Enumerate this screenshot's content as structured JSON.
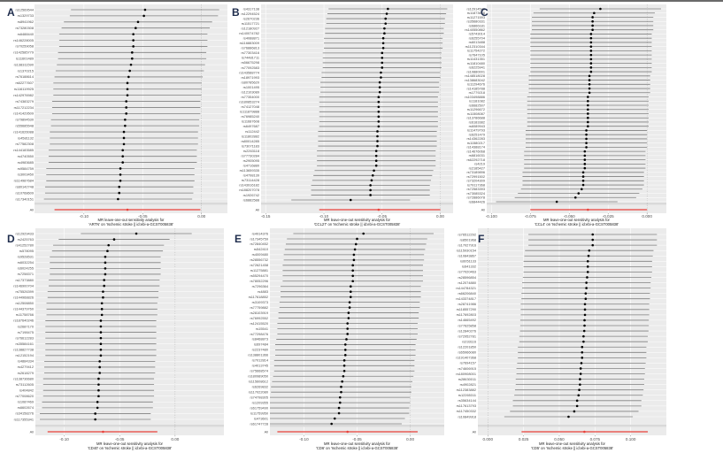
{
  "chart_data": [
    {
      "type": "forest",
      "panel": "A",
      "xlabel": [
        "MR leave-one-out sensitivity analysis for",
        "'ARTN' on 'Ischemic stroke || id:ebi-a-GCST005838'"
      ],
      "xlim": [
        -0.142,
        0.022
      ],
      "ticks": [
        -0.1,
        -0.05,
        0.0
      ],
      "tick_labels": [
        "-0.10",
        "-0.05",
        "0.00"
      ],
      "ci_halfwidth": 0.063,
      "snps": [
        "rs12569544",
        "rs1329733",
        "rs8941962",
        "rs73280308",
        "rs6488440",
        "rs146228005",
        "rs70259058",
        "rs142585779",
        "rs11601489",
        "rs138311590",
        "rs1370215",
        "rs76188614",
        "rs62277607",
        "rs116119925",
        "rs142976982",
        "rs74383279",
        "rs117212234",
        "rs141429509",
        "rs79894530",
        "rs55685548",
        "rs141626088",
        "rs4581132",
        "rs77582308",
        "rs144183585",
        "rs4740550",
        "rs4983685",
        "rs9584759",
        "rs3003450",
        "rs114987684",
        "rs80142748",
        "rs10768609",
        "rs17340151"
      ],
      "est": [
        -0.048,
        -0.049,
        -0.054,
        -0.056,
        -0.058,
        -0.058,
        -0.058,
        -0.059,
        -0.059,
        -0.06,
        -0.061,
        -0.062,
        -0.063,
        -0.063,
        -0.063,
        -0.064,
        -0.064,
        -0.064,
        -0.065,
        -0.065,
        -0.066,
        -0.066,
        -0.066,
        -0.067,
        -0.067,
        -0.067,
        -0.069,
        -0.069,
        -0.069,
        -0.07,
        -0.07,
        -0.071
      ],
      "all": {
        "label": "All",
        "est": -0.063,
        "lo": -0.125,
        "hi": -0.001
      }
    },
    {
      "type": "forest",
      "panel": "B",
      "xlabel": [
        "MR leave-one-out sensitivity analysis for",
        "'CCL27' on 'Ischemic stroke || id:ebi-a-GCST005838'"
      ],
      "xlim": [
        -0.154,
        0.011
      ],
      "ticks": [
        -0.15,
        -0.1,
        -0.05,
        0.0
      ],
      "tick_labels": [
        "-0.15",
        "-0.10",
        "-0.05",
        "0.00"
      ],
      "ci_halfwidth": 0.051,
      "snps": [
        "rs4317138",
        "rs12294524",
        "rs2670236",
        "rs11517721",
        "rs12180927",
        "rs140074782",
        "rs4088871",
        "rs116883009",
        "rs76886813",
        "rs77303416",
        "rs74481711",
        "rs56675298",
        "rs77092583",
        "rs143588774",
        "rs18971993",
        "rs80785620",
        "rs1001495",
        "rs12103089",
        "rs77354000",
        "rs180853274",
        "rs74127048",
        "rs111879888",
        "rs76985240",
        "rs11687608",
        "rs6497687",
        "rs112442",
        "rs11802882",
        "rs80014285",
        "rs73071183",
        "rs2263118",
        "rs77730284",
        "rs2905095",
        "rs4716880",
        "rs113659335",
        "rs4798139",
        "rs73114428",
        "rs143916182",
        "rs188207078",
        "rs1926742",
        "rs6882588"
      ],
      "est": [
        -0.045,
        -0.046,
        -0.047,
        -0.047,
        -0.048,
        -0.048,
        -0.049,
        -0.049,
        -0.049,
        -0.05,
        -0.05,
        -0.05,
        -0.05,
        -0.051,
        -0.051,
        -0.052,
        -0.052,
        -0.052,
        -0.053,
        -0.053,
        -0.053,
        -0.053,
        -0.053,
        -0.053,
        -0.053,
        -0.054,
        -0.054,
        -0.054,
        -0.054,
        -0.055,
        -0.055,
        -0.055,
        -0.055,
        -0.057,
        -0.058,
        -0.059,
        -0.06,
        -0.06,
        -0.06,
        -0.077
      ],
      "all": {
        "label": "All",
        "est": -0.053,
        "lo": -0.104,
        "hi": 0.0
      }
    },
    {
      "type": "forest",
      "panel": "C",
      "xlabel": [
        "MR leave-one-out sensitivity analysis for",
        "'CCL4' on 'Ischemic stroke || id:ebi-a-GCST005838'"
      ],
      "xlim": [
        -0.103,
        0.0124
      ],
      "ticks": [
        -0.1,
        -0.075,
        -0.05,
        -0.025,
        0.0
      ],
      "tick_labels": [
        "-0.100",
        "-0.075",
        "-0.050",
        "-0.025",
        "0.000"
      ],
      "ci_halfwidth": 0.039,
      "snps": [
        "rs12914546",
        "rs11873618",
        "rs11271593",
        "rs35680331",
        "rs6866181",
        "rs140550862",
        "rs5743014",
        "rs6255704",
        "rs6013488",
        "rs112310344",
        "rs11754272",
        "rs7647105",
        "rs11431351",
        "rs11810480",
        "rs6225941",
        "rs10880001",
        "rs148518028",
        "rs138683042",
        "rs11294676",
        "rs14185788",
        "rs1779218",
        "rs103498886",
        "rs1181082",
        "rs6682507",
        "rs11296672",
        "rs11508087",
        "rs13786688",
        "rs6183382",
        "rs6089943",
        "rs11479793",
        "rs6251479",
        "rs14362283",
        "rs11580217",
        "rs14388174",
        "rs14676068",
        "rs6816031",
        "rs62292718",
        "rs4219",
        "rs2185427",
        "rs73189896",
        "rs72991502",
        "rs73204309",
        "rs79117368",
        "rs72583393",
        "rs73085324",
        "rs72886078",
        "rs6844426"
      ],
      "est": [
        -0.03,
        -0.034,
        -0.035,
        -0.035,
        -0.035,
        -0.035,
        -0.036,
        -0.036,
        -0.036,
        -0.036,
        -0.036,
        -0.036,
        -0.036,
        -0.036,
        -0.036,
        -0.036,
        -0.037,
        -0.037,
        -0.037,
        -0.037,
        -0.037,
        -0.038,
        -0.038,
        -0.038,
        -0.038,
        -0.038,
        -0.038,
        -0.038,
        -0.038,
        -0.039,
        -0.039,
        -0.039,
        -0.039,
        -0.039,
        -0.04,
        -0.04,
        -0.04,
        -0.04,
        -0.04,
        -0.041,
        -0.041,
        -0.041,
        -0.041,
        -0.042,
        -0.044,
        -0.046,
        -0.058
      ],
      "all": {
        "label": "All",
        "est": -0.038,
        "lo": -0.075,
        "hi": 0.0
      }
    },
    {
      "type": "forest",
      "panel": "D",
      "xlabel": [
        "MR leave-one-out sensitivity analysis for",
        "'CD40' on 'Ischemic stroke || id:ebi-a-GCST005838'"
      ],
      "xlim": [
        -0.126,
        0.044
      ],
      "ticks": [
        -0.1,
        -0.05,
        0.0
      ],
      "tick_labels": [
        "-0.10",
        "-0.05",
        "0.00"
      ],
      "ci_halfwidth": 0.05,
      "snps": [
        "rs12929433",
        "rs2425763",
        "rs41252780",
        "rs578095",
        "rs9528531",
        "rs6032254",
        "rs6024255",
        "rs7258371",
        "rs17373880",
        "rs146900704",
        "rs75526399",
        "rs144968826",
        "rs12508850",
        "rs144379760",
        "rs11758766",
        "rs187640246",
        "rs2687170",
        "rs7198475",
        "rs76612283",
        "rs35584161",
        "rs138827738",
        "rs12152194",
        "rs4884334",
        "rs4279412",
        "rs2618279",
        "rs138736680",
        "rs73112605",
        "rs404842",
        "rs77008620",
        "rs1087469",
        "rs6602674",
        "rs34158276",
        "rs117355341"
      ],
      "est": [
        -0.035,
        -0.055,
        -0.06,
        -0.061,
        -0.063,
        -0.063,
        -0.063,
        -0.063,
        -0.064,
        -0.064,
        -0.065,
        -0.065,
        -0.066,
        -0.066,
        -0.066,
        -0.067,
        -0.067,
        -0.067,
        -0.067,
        -0.067,
        -0.067,
        -0.067,
        -0.068,
        -0.068,
        -0.068,
        -0.069,
        -0.069,
        -0.069,
        -0.069,
        -0.07,
        -0.07,
        -0.072,
        -0.072
      ],
      "all": {
        "label": "All",
        "est": -0.065,
        "lo": -0.115,
        "hi": -0.016
      }
    },
    {
      "type": "forest",
      "panel": "E",
      "xlabel": [
        "MR leave-one-out sensitivity analysis for",
        "'CD6' on 'Ischemic stroke || id:ebi-a-GCST005838'"
      ],
      "xlim": [
        -0.132,
        0.032
      ],
      "ticks": [
        -0.1,
        -0.05,
        0.0
      ],
      "tick_labels": [
        "-0.10",
        "-0.05",
        "0.00"
      ],
      "ci_halfwidth": 0.066,
      "snps": [
        "rs4914376",
        "rs17345759",
        "rs72840452",
        "rs542410",
        "rs4009480",
        "rs28556732",
        "rs72621458",
        "rs11275881",
        "rs55294470",
        "rs78052296",
        "rs7296364",
        "rs4883",
        "rs117618852",
        "rs3109373",
        "rs77759882",
        "rs28103919",
        "rs76992552",
        "rs12415520",
        "rs15541",
        "rs77298476",
        "rs8468873",
        "rs697484",
        "rs2237480",
        "rs138801366",
        "rs7012814",
        "rs4013745",
        "rs75668574",
        "rs180989050",
        "rs115608612",
        "rs6269832",
        "rs117022080",
        "rs74798305",
        "rs1209355",
        "rs61759490",
        "rs11759950",
        "rs473601",
        "rs61747728"
      ],
      "est": [
        -0.044,
        -0.05,
        -0.051,
        -0.052,
        -0.053,
        -0.053,
        -0.054,
        -0.054,
        -0.054,
        -0.054,
        -0.056,
        -0.056,
        -0.056,
        -0.057,
        -0.057,
        -0.058,
        -0.058,
        -0.059,
        -0.059,
        -0.059,
        -0.06,
        -0.061,
        -0.061,
        -0.061,
        -0.062,
        -0.062,
        -0.062,
        -0.063,
        -0.064,
        -0.065,
        -0.065,
        -0.066,
        -0.066,
        -0.067,
        -0.067,
        -0.071,
        -0.074
      ],
      "all": {
        "label": "All",
        "est": -0.059,
        "lo": -0.125,
        "hi": 0.007
      }
    },
    {
      "type": "forest",
      "panel": "F",
      "xlabel": [
        "MR leave-one-out sensitivity analysis for",
        "'CD5' on 'Ischemic stroke || id:ebi-a-GCST005838'"
      ],
      "xlim": [
        -0.007,
        0.125
      ],
      "ticks": [
        0.0,
        0.025,
        0.05,
        0.075,
        0.1
      ],
      "tick_labels": [
        "0.000",
        "0.025",
        "0.050",
        "0.075",
        "0.100"
      ],
      "ci_halfwidth": 0.045,
      "snps": [
        "rs76512292",
        "rs8501968",
        "rs17027916",
        "rs115930154",
        "rs10843867",
        "rs6051133",
        "rs641332",
        "rs77020463",
        "rs28596854",
        "rs12074880",
        "rs144784321",
        "rs66206840",
        "rs143374817",
        "rs28741986",
        "rs118557290",
        "rs117692803",
        "rs14665492",
        "rs77625858",
        "rs12840276",
        "rs72952781",
        "rs233116",
        "rs12201850",
        "rs65966080",
        "rs191407368",
        "rs7694157",
        "rs74606915",
        "rs180908001",
        "rs28630011",
        "rs4902821",
        "rs112383882",
        "rs12265311",
        "rs35634144",
        "rs117613793",
        "rs117450332",
        "rs10849918"
      ],
      "est": [
        0.0734,
        0.0734,
        0.0734,
        0.071,
        0.0705,
        0.07,
        0.07,
        0.07,
        0.0695,
        0.069,
        0.069,
        0.0685,
        0.0685,
        0.068,
        0.068,
        0.068,
        0.0677,
        0.0677,
        0.0675,
        0.067,
        0.067,
        0.066,
        0.066,
        0.066,
        0.0655,
        0.065,
        0.065,
        0.0645,
        0.0645,
        0.064,
        0.0635,
        0.0625,
        0.0625,
        0.0605,
        0.0565
      ],
      "all": {
        "label": "All",
        "est": 0.0676,
        "lo": 0.0236,
        "hi": 0.112
      }
    }
  ],
  "colors": {
    "panel_bg": "#ebebeb",
    "ci_line": "#7f7f7f",
    "point": "#000000",
    "overall": "#e8403a",
    "letter": "#1f2d4d"
  }
}
